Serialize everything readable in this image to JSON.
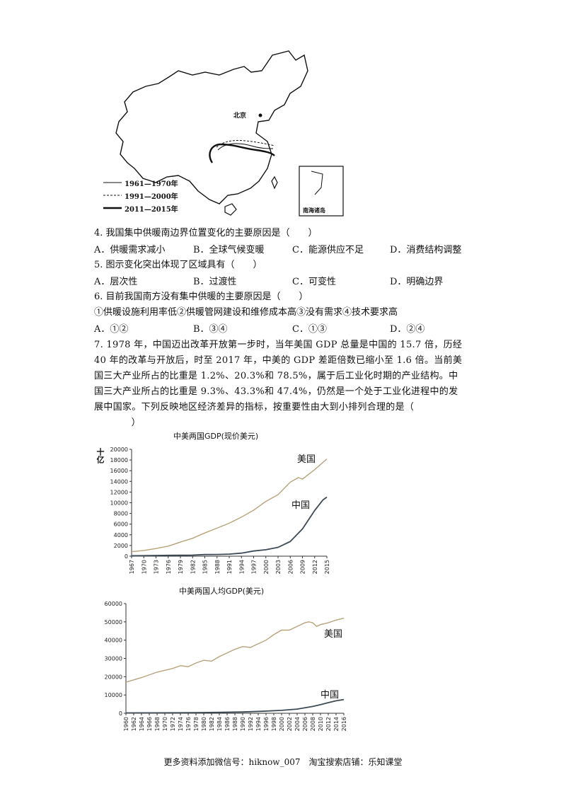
{
  "map": {
    "beijing_label": "北京",
    "inset_label": "南海诸岛",
    "legend": [
      "1961—1970年",
      "1991—2000年",
      "2011—2015年"
    ]
  },
  "questions": {
    "q4": {
      "stem": "4. 我国集中供暖南边界位置变化的主要原因是（　　）",
      "options": [
        "A．供暖需求减小",
        "B．全球气候变暖",
        "C．能源供应不足",
        "D．消费结构调整"
      ]
    },
    "q5": {
      "stem": "5. 图示变化突出体现了区域具有（　　）",
      "options": [
        "A．层次性",
        "B．过渡性",
        "C．可变性",
        "D．明确边界"
      ]
    },
    "q6": {
      "stem": "6. 目前我国南方没有集中供暖的主要原因是（　　）",
      "statement": "①供暖设施利用率低②供暖管网建设和维修成本高③没有需求④技术要求高",
      "options": [
        "A．①②",
        "B．③④",
        "C．①③",
        "D．②④"
      ]
    },
    "q7": {
      "lines": [
        "7. 1978 年，中国迈出改革开放第一步时，当年美国 GDP 总量是中国的 15.7 倍，历经",
        "40 年的改革与开放后，时至 2017 年，中美的 GDP 差距倍数已缩小至 1.6 倍。当前美",
        "国三大产业所占的比重是 1.2%、20.3%和 78.5%，属于后工业化时期的产业结构。中",
        "国三大产业所占的比重是 9.3%、43.3%和 47.4%，仍然是一个处于工业化进程中的发",
        "展中国家。下列反映地区经济差异的指标，按重要性由大到小排列合理的是（",
        "　　）"
      ]
    }
  },
  "chart_data": [
    {
      "type": "line",
      "title": "中美两国GDP(现价美元)",
      "ylabel": "十亿",
      "xlabel": "",
      "ylim": [
        0,
        20000
      ],
      "yticks": [
        0,
        2000,
        4000,
        6000,
        8000,
        10000,
        12000,
        14000,
        16000,
        18000,
        20000
      ],
      "xlim": [
        1967,
        2015
      ],
      "xticks": [
        1967,
        1970,
        1973,
        1976,
        1979,
        1982,
        1985,
        1988,
        1991,
        1994,
        1997,
        2000,
        2003,
        2006,
        2009,
        2012,
        2015
      ],
      "series": [
        {
          "name": "美国",
          "color": "#b9a27a",
          "x": [
            1967,
            1970,
            1973,
            1976,
            1979,
            1982,
            1985,
            1988,
            1991,
            1994,
            1997,
            2000,
            2003,
            2006,
            2008,
            2009,
            2012,
            2015
          ],
          "values": [
            830,
            1070,
            1430,
            1880,
            2630,
            3350,
            4340,
            5240,
            6170,
            7310,
            8610,
            10250,
            11510,
            13860,
            14720,
            14420,
            16200,
            18200
          ]
        },
        {
          "name": "中国",
          "color": "#3e4a55",
          "x": [
            1967,
            1970,
            1973,
            1976,
            1979,
            1982,
            1985,
            1988,
            1991,
            1994,
            1997,
            2000,
            2003,
            2006,
            2009,
            2012,
            2014,
            2015
          ],
          "values": [
            73,
            92,
            139,
            154,
            178,
            205,
            309,
            312,
            383,
            564,
            962,
            1211,
            1660,
            2750,
            5100,
            8560,
            10500,
            11060
          ]
        }
      ],
      "labels": {
        "us": "美国",
        "cn": "中国"
      }
    },
    {
      "type": "line",
      "title": "中美两国人均GDP(美元)",
      "xlabel": "",
      "ylabel": "",
      "ylim": [
        0,
        60000
      ],
      "yticks": [
        0,
        10000,
        20000,
        30000,
        40000,
        50000,
        60000
      ],
      "xlim": [
        1960,
        2016
      ],
      "xticks": [
        1960,
        1962,
        1964,
        1966,
        1968,
        1970,
        1972,
        1974,
        1976,
        1978,
        1980,
        1982,
        1984,
        1986,
        1988,
        1990,
        1992,
        1994,
        1996,
        1998,
        2000,
        2002,
        2004,
        2006,
        2008,
        2010,
        2012,
        2014,
        2016
      ],
      "series": [
        {
          "name": "美国",
          "color": "#b9a27a",
          "x": [
            1960,
            1964,
            1968,
            1972,
            1974,
            1976,
            1978,
            1980,
            1982,
            1984,
            1986,
            1988,
            1990,
            1992,
            1994,
            1996,
            1998,
            2000,
            2002,
            2004,
            2006,
            2007,
            2008,
            2009,
            2010,
            2012,
            2014,
            2016
          ],
          "values": [
            17000,
            19500,
            22500,
            24500,
            26000,
            25500,
            27500,
            29000,
            28500,
            31000,
            33000,
            35000,
            36500,
            36000,
            38000,
            40000,
            43000,
            45500,
            45500,
            47500,
            49500,
            50000,
            49500,
            47500,
            48500,
            49500,
            51000,
            52000
          ]
        },
        {
          "name": "中国",
          "color": "#3e4a55",
          "x": [
            1960,
            1970,
            1980,
            1990,
            1995,
            2000,
            2004,
            2008,
            2010,
            2012,
            2014,
            2016
          ],
          "values": [
            200,
            250,
            400,
            700,
            1100,
            1600,
            2300,
            3700,
            4700,
            5800,
            6800,
            7500
          ]
        }
      ],
      "labels": {
        "us": "美国",
        "cn": "中国"
      }
    }
  ],
  "footer": "更多资料添加微信号：hiknow_007　淘宝搜索店铺：乐知课堂"
}
